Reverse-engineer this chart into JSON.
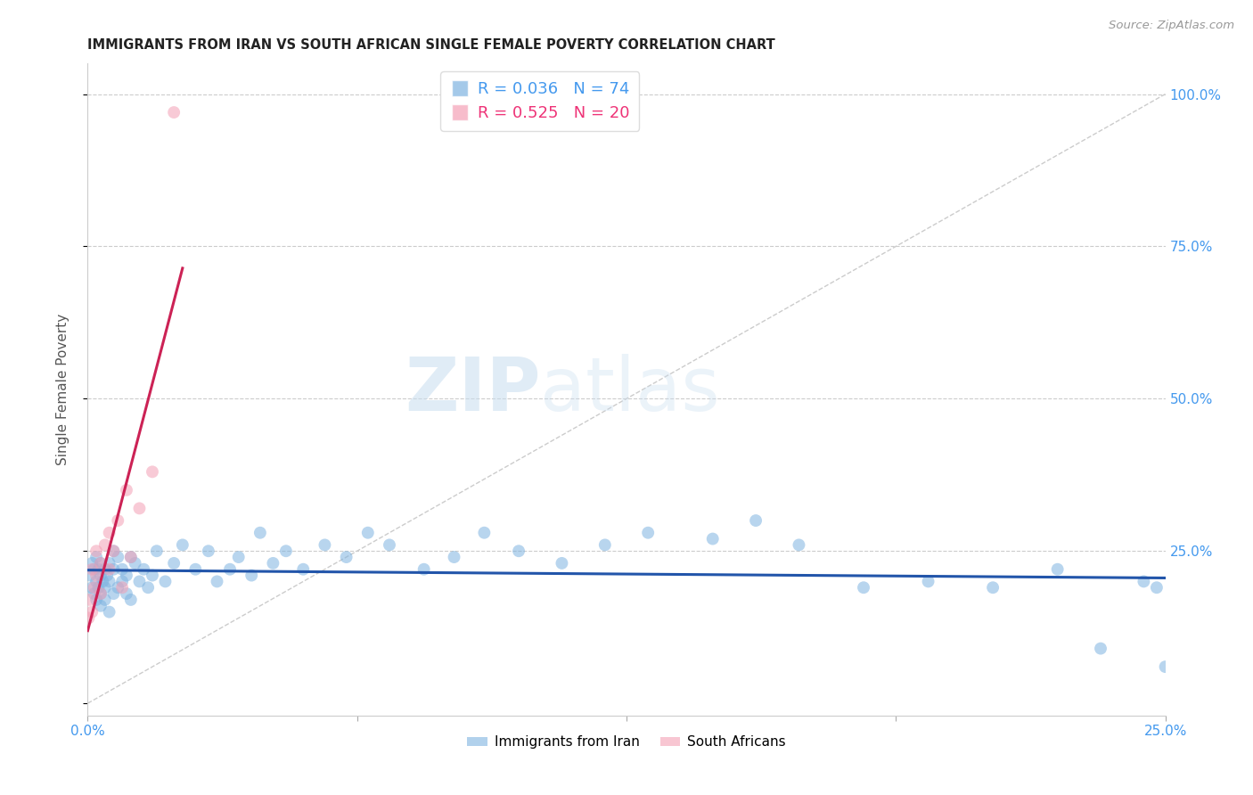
{
  "title": "IMMIGRANTS FROM IRAN VS SOUTH AFRICAN SINGLE FEMALE POVERTY CORRELATION CHART",
  "source": "Source: ZipAtlas.com",
  "ylabel": "Single Female Poverty",
  "xlim": [
    0.0,
    0.25
  ],
  "ylim": [
    -0.02,
    1.05
  ],
  "r_iran": 0.036,
  "n_iran": 74,
  "r_sa": 0.525,
  "n_sa": 20,
  "legend_label_iran": "Immigrants from Iran",
  "legend_label_sa": "South Africans",
  "color_iran": "#7EB3E0",
  "color_sa": "#F4A0B5",
  "color_trendline_iran": "#2255AA",
  "color_trendline_sa": "#CC2255",
  "color_diagonal": "#CCCCCC",
  "iran_x": [
    0.0005,
    0.001,
    0.001,
    0.0015,
    0.0015,
    0.002,
    0.002,
    0.002,
    0.0025,
    0.0025,
    0.003,
    0.003,
    0.003,
    0.003,
    0.0035,
    0.004,
    0.004,
    0.004,
    0.0045,
    0.005,
    0.005,
    0.005,
    0.006,
    0.006,
    0.006,
    0.007,
    0.007,
    0.008,
    0.008,
    0.009,
    0.009,
    0.01,
    0.01,
    0.011,
    0.012,
    0.013,
    0.014,
    0.015,
    0.016,
    0.018,
    0.02,
    0.022,
    0.025,
    0.028,
    0.03,
    0.033,
    0.035,
    0.038,
    0.04,
    0.043,
    0.046,
    0.05,
    0.055,
    0.06,
    0.065,
    0.07,
    0.078,
    0.085,
    0.092,
    0.1,
    0.11,
    0.12,
    0.13,
    0.145,
    0.155,
    0.165,
    0.18,
    0.195,
    0.21,
    0.225,
    0.235,
    0.245,
    0.248,
    0.25
  ],
  "iran_y": [
    0.21,
    0.19,
    0.23,
    0.18,
    0.22,
    0.2,
    0.17,
    0.24,
    0.19,
    0.22,
    0.16,
    0.21,
    0.18,
    0.23,
    0.2,
    0.17,
    0.22,
    0.19,
    0.21,
    0.15,
    0.23,
    0.2,
    0.18,
    0.22,
    0.25,
    0.19,
    0.24,
    0.2,
    0.22,
    0.18,
    0.21,
    0.24,
    0.17,
    0.23,
    0.2,
    0.22,
    0.19,
    0.21,
    0.25,
    0.2,
    0.23,
    0.26,
    0.22,
    0.25,
    0.2,
    0.22,
    0.24,
    0.21,
    0.28,
    0.23,
    0.25,
    0.22,
    0.26,
    0.24,
    0.28,
    0.26,
    0.22,
    0.24,
    0.28,
    0.25,
    0.23,
    0.26,
    0.28,
    0.27,
    0.3,
    0.26,
    0.19,
    0.2,
    0.19,
    0.22,
    0.09,
    0.2,
    0.19,
    0.06
  ],
  "sa_x": [
    0.0002,
    0.0005,
    0.001,
    0.001,
    0.0015,
    0.002,
    0.002,
    0.003,
    0.003,
    0.004,
    0.005,
    0.005,
    0.006,
    0.007,
    0.008,
    0.009,
    0.01,
    0.012,
    0.015,
    0.02
  ],
  "sa_y": [
    0.14,
    0.17,
    0.15,
    0.22,
    0.19,
    0.21,
    0.25,
    0.18,
    0.23,
    0.26,
    0.22,
    0.28,
    0.25,
    0.3,
    0.19,
    0.35,
    0.24,
    0.32,
    0.38,
    0.97
  ],
  "sa_trend_x0": 0.0,
  "sa_trend_x1": 0.022,
  "iran_trend_x0": 0.0,
  "iran_trend_x1": 0.25
}
